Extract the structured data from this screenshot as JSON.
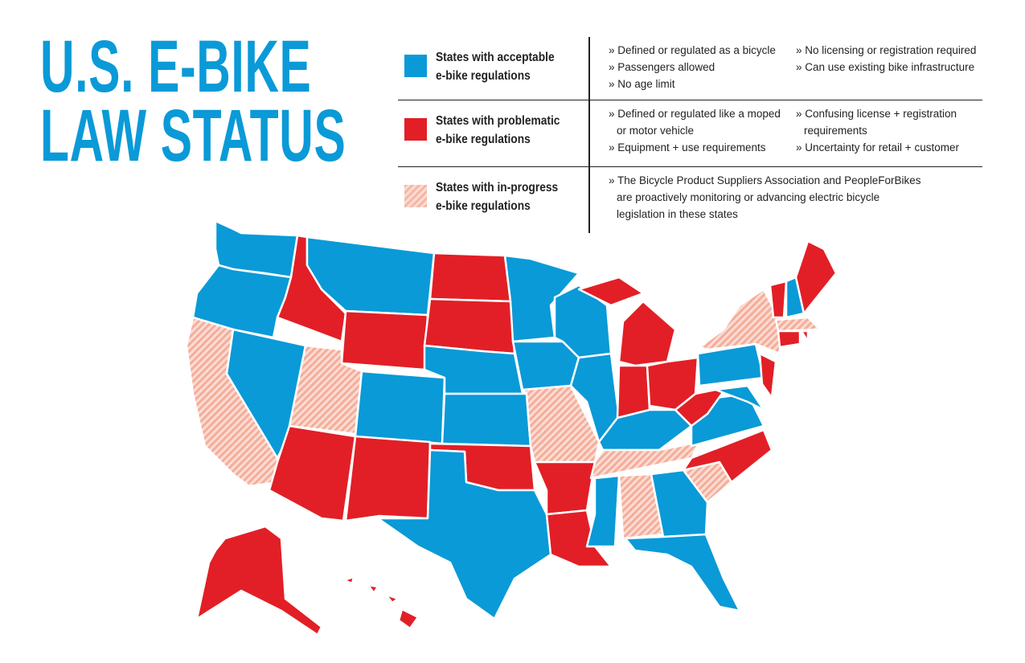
{
  "header": {
    "title_lines": [
      "U.S. E-BIKE",
      "LAW STATUS"
    ]
  },
  "legend": [
    {
      "label_lines": [
        "States with acceptable",
        "e-bike regulations"
      ],
      "color": "#0a9ad7",
      "hatched": false,
      "columns": [
        [
          "» Defined or regulated as a bicycle",
          "» Passengers allowed",
          "» No age limit"
        ],
        [
          "» No licensing or registration required",
          "» Can use existing bike infrastructure"
        ]
      ]
    },
    {
      "label_lines": [
        "States with problematic",
        "e-bike regulations"
      ],
      "color": "#e21f26",
      "hatched": false,
      "columns": [
        [
          "» Defined or regulated like a moped or motor vehicle",
          "» Equipment + use requirements"
        ],
        [
          "» Confusing license + registration requirements",
          "» Uncertainty for retail + customer"
        ]
      ]
    },
    {
      "label_lines": [
        "States with in-progress",
        "e-bike regulations"
      ],
      "color": "#f4b8a8",
      "hatched": true,
      "columns": [
        [
          "» The Bicycle Product Suppliers Association and PeopleForBikes are proactively monitoring or advancing electric bicycle legislation in these states"
        ]
      ]
    }
  ]
}
